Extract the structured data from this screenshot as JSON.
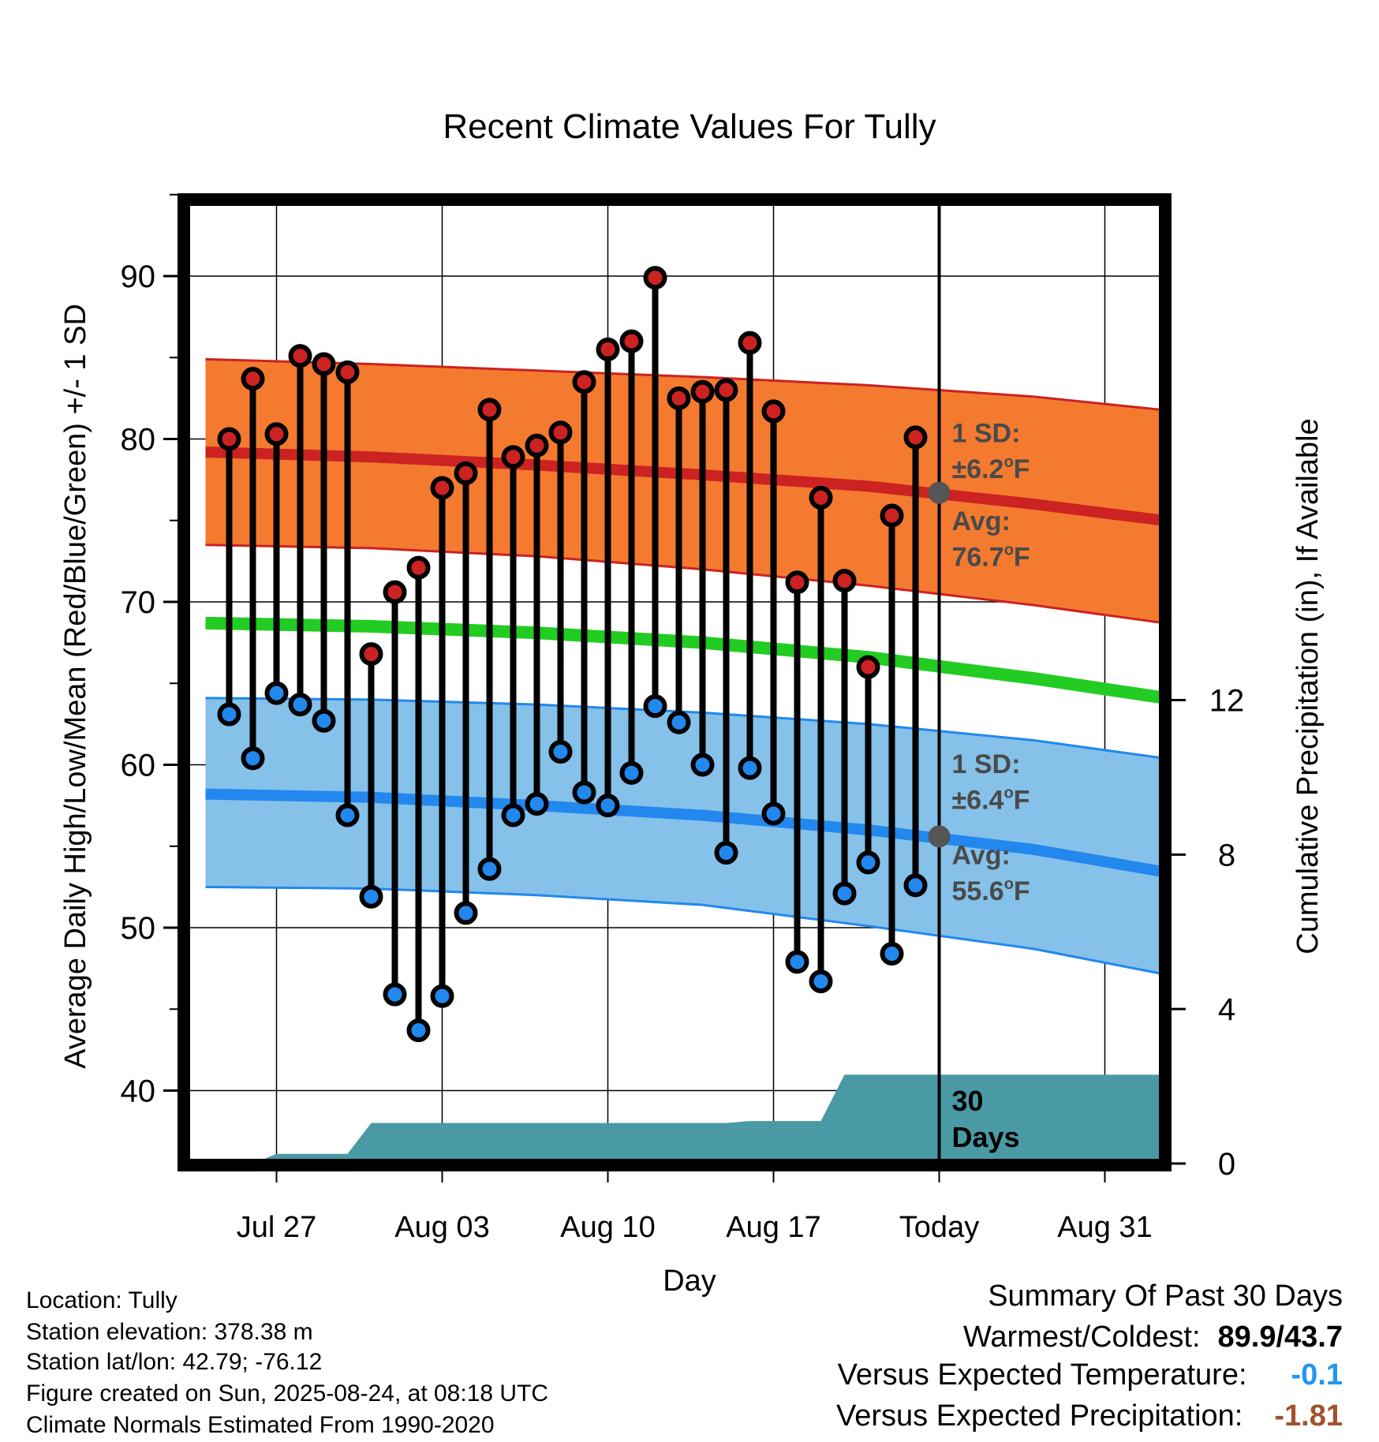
{
  "chart_data": {
    "type": "line",
    "title": "Recent Climate Values For Tully",
    "xlabel": "Day",
    "ylabel": "Average Daily High/Low/Mean (Red/Blue/Green) +/- 1 SD",
    "y2label": "Cumulative Precipitation (in), If Available",
    "ylim": [
      35.5,
      95
    ],
    "y2lim": [
      0,
      24.6
    ],
    "yticks": [
      40,
      50,
      60,
      70,
      80,
      90
    ],
    "y2ticks": [
      0,
      4,
      8,
      12
    ],
    "xrange": [
      "2025-07-24",
      "2025-09-03"
    ],
    "xtick_labels": [
      {
        "date": "2025-07-27",
        "label": "Jul 27"
      },
      {
        "date": "2025-08-03",
        "label": "Aug 03"
      },
      {
        "date": "2025-08-10",
        "label": "Aug 10"
      },
      {
        "date": "2025-08-17",
        "label": "Aug 17"
      },
      {
        "date": "2025-08-24",
        "label": "Today"
      },
      {
        "date": "2025-08-31",
        "label": "Aug 31"
      }
    ],
    "grid": true,
    "today": "2025-08-24",
    "colors": {
      "high": "#cc2222",
      "low": "#2288ee",
      "mean": "#22cc22",
      "high_band": "#f47a30",
      "low_band": "#85c1e9",
      "precip": "#4a9aa5",
      "avg_marker": "#555555"
    },
    "daily": {
      "dates": [
        "2025-07-25",
        "2025-07-26",
        "2025-07-27",
        "2025-07-28",
        "2025-07-29",
        "2025-07-30",
        "2025-07-31",
        "2025-08-01",
        "2025-08-02",
        "2025-08-03",
        "2025-08-04",
        "2025-08-05",
        "2025-08-06",
        "2025-08-07",
        "2025-08-08",
        "2025-08-09",
        "2025-08-10",
        "2025-08-11",
        "2025-08-12",
        "2025-08-13",
        "2025-08-14",
        "2025-08-15",
        "2025-08-16",
        "2025-08-17",
        "2025-08-18",
        "2025-08-19",
        "2025-08-20",
        "2025-08-21",
        "2025-08-22",
        "2025-08-23"
      ],
      "high": [
        80.0,
        83.7,
        80.3,
        85.1,
        84.6,
        84.1,
        66.8,
        70.6,
        72.1,
        77.0,
        77.9,
        81.8,
        78.9,
        79.6,
        80.4,
        83.5,
        85.5,
        86.0,
        89.9,
        82.5,
        82.9,
        83.0,
        85.9,
        81.7,
        71.2,
        76.4,
        71.3,
        66.0,
        75.3,
        80.1
      ],
      "low": [
        63.1,
        60.4,
        64.4,
        63.7,
        62.7,
        56.9,
        51.9,
        45.9,
        43.7,
        45.8,
        50.9,
        53.6,
        56.9,
        57.6,
        60.8,
        58.3,
        57.5,
        59.5,
        63.6,
        62.6,
        60.0,
        54.6,
        59.8,
        57.0,
        47.9,
        46.7,
        52.1,
        54.0,
        48.4,
        52.6
      ]
    },
    "normals": {
      "dates": [
        "2025-07-24",
        "2025-07-31",
        "2025-08-07",
        "2025-08-14",
        "2025-08-21",
        "2025-08-28",
        "2025-09-03"
      ],
      "high_avg": [
        79.2,
        78.9,
        78.4,
        77.8,
        77.1,
        76.0,
        74.9
      ],
      "high_upper": [
        84.9,
        84.6,
        84.2,
        83.8,
        83.3,
        82.6,
        81.7
      ],
      "high_lower": [
        73.5,
        73.3,
        72.8,
        72.0,
        71.0,
        69.8,
        68.6
      ],
      "mean": [
        68.7,
        68.5,
        68.1,
        67.5,
        66.6,
        65.3,
        64.0
      ],
      "low_avg": [
        58.2,
        58.0,
        57.5,
        56.9,
        56.0,
        54.8,
        53.3
      ],
      "low_upper": [
        64.1,
        64.0,
        63.7,
        63.2,
        62.5,
        61.5,
        60.3
      ],
      "low_lower": [
        52.5,
        52.4,
        52.0,
        51.4,
        50.1,
        48.7,
        47.0
      ]
    },
    "precip": {
      "dates": [
        "2025-07-25",
        "2025-07-26",
        "2025-07-27",
        "2025-07-29",
        "2025-07-30",
        "2025-07-31",
        "2025-08-15",
        "2025-08-16",
        "2025-08-19",
        "2025-08-20",
        "2025-09-03"
      ],
      "cumulative": [
        0.0,
        0.0,
        0.25,
        0.25,
        0.25,
        1.05,
        1.05,
        1.1,
        1.1,
        2.3,
        2.3
      ]
    },
    "annotations": {
      "high_sd_label": "1 SD:",
      "high_sd_value": "±6.2",
      "high_avg_label": "Avg:",
      "high_avg_value": "76.7",
      "high_avg_marker": 76.7,
      "low_sd_label": "1 SD:",
      "low_sd_value": "±6.4",
      "low_avg_label": "Avg:",
      "low_avg_value": "55.6",
      "low_avg_marker": 55.6,
      "degree_mark": "o",
      "unit": "F",
      "days_line1": "30",
      "days_line2": "Days"
    }
  },
  "info": {
    "location": "Location: Tully",
    "elevation": "Station elevation: 378.38 m",
    "latlon": "Station lat/lon: 42.79; -76.12",
    "created": "Figure created on Sun, 2025-08-24, at 08:18 UTC",
    "normals": "Climate Normals Estimated From 1990-2020"
  },
  "summary": {
    "title": "Summary Of Past 30 Days",
    "warm_cold_label": "Warmest/Coldest:",
    "warm_cold_value": "89.9/43.7",
    "temp_label": "Versus Expected Temperature:",
    "temp_value": "-0.1",
    "precip_label": "Versus Expected Precipitation:",
    "precip_value": "-1.81"
  }
}
